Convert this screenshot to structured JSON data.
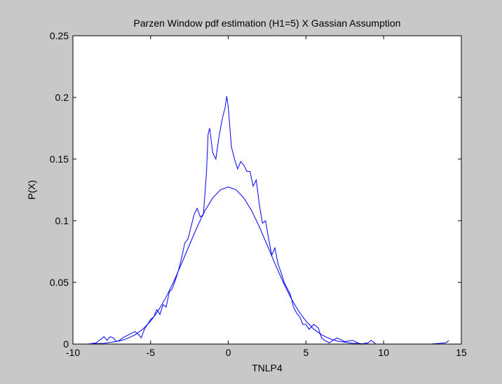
{
  "chart_data": {
    "type": "line",
    "title": "Parzen Window pdf estimation (H1=5) X Gassian Assumption",
    "xlabel": "TNLP4",
    "ylabel": "P(X)",
    "xlim": [
      -10,
      15
    ],
    "ylim": [
      0,
      0.25
    ],
    "xticks": [
      -10,
      -5,
      0,
      5,
      10,
      15
    ],
    "xtick_labels": [
      "-10",
      "-5",
      "0",
      "5",
      "10",
      "15"
    ],
    "yticks": [
      0,
      0.05,
      0.1,
      0.15,
      0.2,
      0.25
    ],
    "ytick_labels": [
      "0",
      "0.05",
      "0.1",
      "0.15",
      "0.2",
      "0.25"
    ],
    "grid": false,
    "line_color": "#0000ff",
    "axes_background": "#ffffff",
    "figure_background": "#c8c8c8",
    "series": [
      {
        "x": [
          -9.0,
          -8.5,
          -8.2,
          -8.0,
          -7.8,
          -7.6,
          -7.4,
          -7.2,
          -7.0,
          -6.8,
          -6.5,
          -6.2,
          -6.0,
          -5.8,
          -5.6,
          -5.4,
          -5.2,
          -5.0,
          -4.8,
          -4.6,
          -4.4,
          -4.2,
          -4.0,
          -3.8,
          -3.6,
          -3.4,
          -3.2,
          -3.0,
          -2.8,
          -2.6,
          -2.4,
          -2.2,
          -2.0,
          -1.8,
          -1.6,
          -1.4,
          -1.3,
          -1.2,
          -1.0,
          -0.8,
          -0.6,
          -0.4,
          -0.2,
          -0.1,
          0.0,
          0.2,
          0.4,
          0.6,
          0.8,
          1.0,
          1.2,
          1.4,
          1.6,
          1.8,
          2.0,
          2.2,
          2.4,
          2.6,
          2.8,
          3.0,
          3.2,
          3.4,
          3.6,
          3.8,
          4.0,
          4.2,
          4.4,
          4.6,
          4.8,
          5.0,
          5.2,
          5.5,
          5.8,
          6.0,
          6.2,
          6.5,
          7.0,
          7.5,
          8.0,
          8.5,
          9.0,
          9.2,
          9.5,
          10.0,
          11.0,
          12.0,
          13.0,
          14.0,
          14.2
        ],
        "y": [
          0.0,
          0.001,
          0.004,
          0.006,
          0.003,
          0.006,
          0.005,
          0.002,
          0.003,
          0.005,
          0.007,
          0.009,
          0.01,
          0.008,
          0.005,
          0.012,
          0.016,
          0.02,
          0.022,
          0.028,
          0.024,
          0.032,
          0.03,
          0.042,
          0.045,
          0.052,
          0.06,
          0.07,
          0.082,
          0.085,
          0.095,
          0.105,
          0.11,
          0.103,
          0.105,
          0.14,
          0.17,
          0.175,
          0.155,
          0.15,
          0.168,
          0.182,
          0.192,
          0.201,
          0.192,
          0.16,
          0.15,
          0.142,
          0.148,
          0.145,
          0.14,
          0.14,
          0.128,
          0.133,
          0.113,
          0.098,
          0.1,
          0.085,
          0.072,
          0.078,
          0.065,
          0.058,
          0.05,
          0.045,
          0.04,
          0.03,
          0.025,
          0.022,
          0.016,
          0.016,
          0.012,
          0.016,
          0.013,
          0.005,
          0.003,
          0.001,
          0.005,
          0.002,
          0.003,
          0.0,
          0.001,
          0.003,
          0.0,
          0.0,
          0.0,
          0.0,
          0.0,
          0.001,
          0.003
        ]
      },
      {
        "x": [
          -10.0,
          -9.0,
          -8.0,
          -7.0,
          -6.5,
          -6.0,
          -5.5,
          -5.0,
          -4.5,
          -4.0,
          -3.5,
          -3.0,
          -2.5,
          -2.0,
          -1.5,
          -1.0,
          -0.5,
          0.0,
          0.5,
          1.0,
          1.5,
          2.0,
          2.5,
          3.0,
          3.5,
          4.0,
          4.5,
          5.0,
          5.5,
          6.0,
          6.5,
          7.0,
          8.0,
          9.0,
          10.0,
          11.0,
          12.0,
          13.0,
          14.0
        ],
        "y": [
          0.0,
          0.0001,
          0.0006,
          0.0025,
          0.0045,
          0.0075,
          0.0121,
          0.0186,
          0.0272,
          0.0381,
          0.051,
          0.0654,
          0.0804,
          0.0951,
          0.1082,
          0.1185,
          0.1251,
          0.1274,
          0.1251,
          0.1185,
          0.1082,
          0.0951,
          0.0804,
          0.0654,
          0.051,
          0.0381,
          0.0272,
          0.0186,
          0.0121,
          0.0075,
          0.0045,
          0.0025,
          0.0006,
          0.0001,
          0.0,
          0.0,
          0.0,
          0.0,
          0.0
        ]
      }
    ]
  }
}
